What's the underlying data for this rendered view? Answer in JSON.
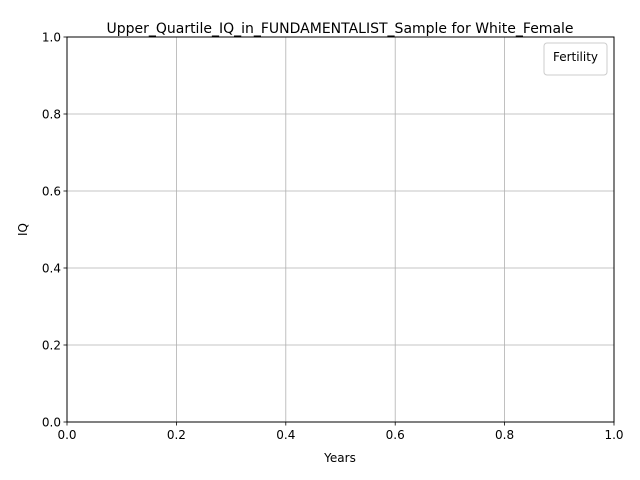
{
  "chart_data": {
    "type": "line",
    "title": "Upper_Quartile_IQ_in_FUNDAMENTALIST_Sample for White_Female",
    "xlabel": "Years",
    "ylabel": "IQ",
    "xlim": [
      0.0,
      1.0
    ],
    "ylim": [
      0.0,
      1.0
    ],
    "xticks": [
      "0.0",
      "0.2",
      "0.4",
      "0.6",
      "0.8",
      "1.0"
    ],
    "yticks": [
      "0.0",
      "0.2",
      "0.4",
      "0.6",
      "0.8",
      "1.0"
    ],
    "grid": true,
    "legend": {
      "title": "Fertility",
      "placement": "top-right",
      "entries": []
    },
    "series": []
  },
  "colors": {
    "grid": "#b0b0b0",
    "axis": "#000000",
    "background": "#ffffff"
  }
}
